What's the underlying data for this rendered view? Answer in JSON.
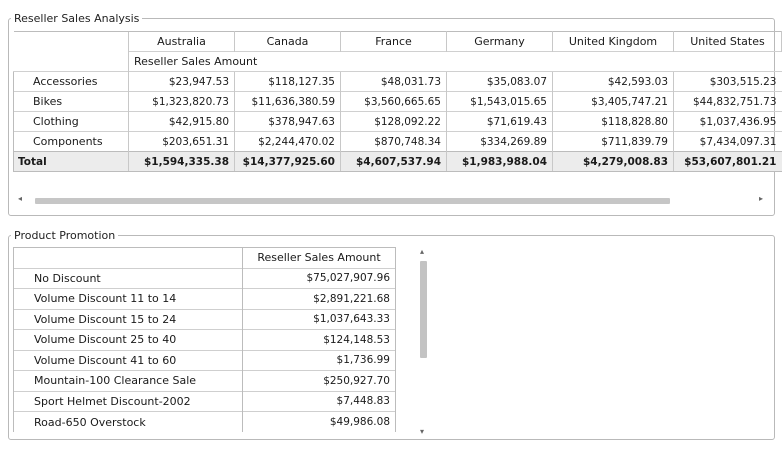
{
  "sales_group": {
    "title": "Reseller Sales Analysis",
    "countries": [
      "Australia",
      "Canada",
      "France",
      "Germany",
      "United Kingdom",
      "United States"
    ],
    "measure": "Reseller Sales Amount",
    "rows": [
      {
        "label": "Accessories",
        "values": [
          "$23,947.53",
          "$118,127.35",
          "$48,031.73",
          "$35,083.07",
          "$42,593.03",
          "$303,515.23"
        ]
      },
      {
        "label": "Bikes",
        "values": [
          "$1,323,820.73",
          "$11,636,380.59",
          "$3,560,665.65",
          "$1,543,015.65",
          "$3,405,747.21",
          "$44,832,751.73"
        ]
      },
      {
        "label": "Clothing",
        "values": [
          "$42,915.80",
          "$378,947.63",
          "$128,092.22",
          "$71,619.43",
          "$118,828.80",
          "$1,037,436.95"
        ]
      },
      {
        "label": "Components",
        "values": [
          "$203,651.31",
          "$2,244,470.02",
          "$870,748.34",
          "$334,269.89",
          "$711,839.79",
          "$7,434,097.31"
        ]
      }
    ],
    "total": {
      "label": "Total",
      "values": [
        "$1,594,335.38",
        "$14,377,925.60",
        "$4,607,537.94",
        "$1,983,988.04",
        "$4,279,008.83",
        "$53,607,801.21"
      ]
    }
  },
  "promo_group": {
    "title": "Product Promotion",
    "measure": "Reseller Sales Amount",
    "rows": [
      {
        "label": "No Discount",
        "value": "$75,027,907.96"
      },
      {
        "label": "Volume Discount 11 to 14",
        "value": "$2,891,221.68"
      },
      {
        "label": "Volume Discount 15 to 24",
        "value": "$1,037,643.33"
      },
      {
        "label": "Volume Discount 25 to 40",
        "value": "$124,148.53"
      },
      {
        "label": "Volume Discount 41 to 60",
        "value": "$1,736.99"
      },
      {
        "label": "Mountain-100 Clearance Sale",
        "value": "$250,927.70"
      },
      {
        "label": "Sport Helmet Discount-2002",
        "value": "$7,448.83"
      },
      {
        "label": "Road-650 Overstock",
        "value": "$49,986.08"
      }
    ]
  },
  "scroll": {
    "left": "◂",
    "right": "▸",
    "up": "▴",
    "down": "▾",
    "horizontal_position": 0.0,
    "vertical_position": 0.0
  }
}
